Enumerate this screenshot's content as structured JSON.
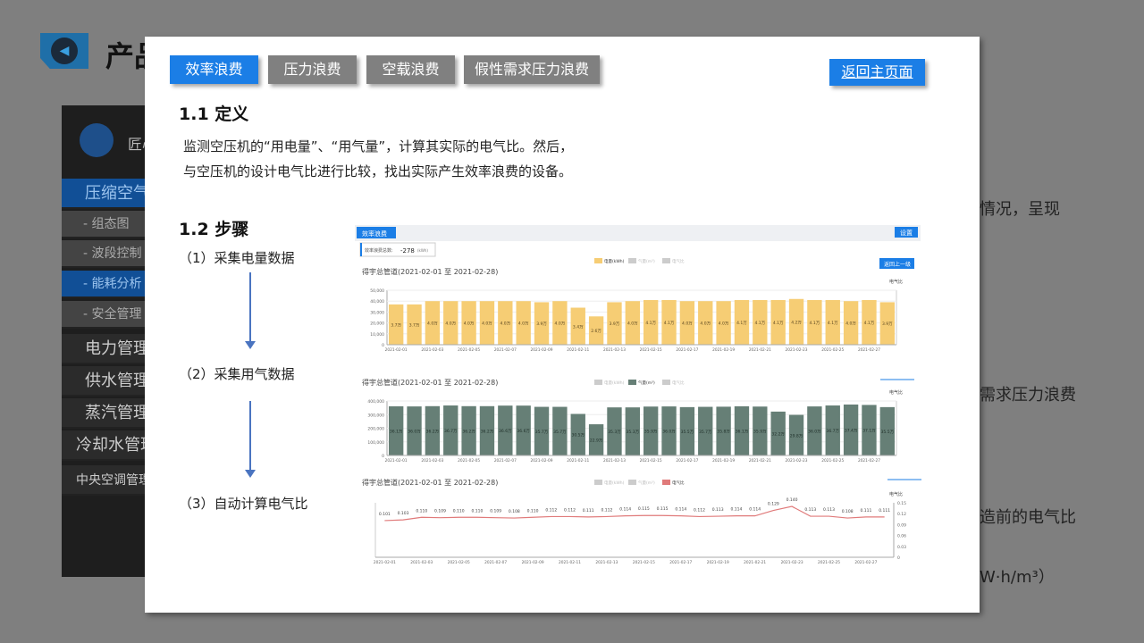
{
  "background": {
    "title": "产品",
    "sidebar": {
      "brand": "匠心",
      "items": [
        {
          "label": "压缩空气",
          "type": "act"
        },
        {
          "label": "- 组态图",
          "type": "sub"
        },
        {
          "label": "- 波段控制",
          "type": "sub"
        },
        {
          "label": "- 能耗分析",
          "type": "subact"
        },
        {
          "label": "- 安全管理",
          "type": "sub"
        },
        {
          "label": "电力管理",
          "type": "dark"
        },
        {
          "label": "供水管理",
          "type": "dark"
        },
        {
          "label": "蒸汽管理",
          "type": "dark"
        },
        {
          "label": "冷却水管理",
          "type": "dark"
        },
        {
          "label": "中央空调管理",
          "type": "darksm"
        }
      ]
    },
    "right_text": [
      "情况，呈现",
      "需求压力浪费",
      "造前的电气比",
      "W·h/m³）"
    ]
  },
  "tabs": [
    {
      "label": "效率浪费",
      "active": true
    },
    {
      "label": "压力浪费"
    },
    {
      "label": "空载浪费"
    },
    {
      "label": "假性需求压力浪费"
    }
  ],
  "home_button": "返回主页面",
  "section1": {
    "title": "1.1 定义",
    "lines": [
      "监测空压机的“用电量”、“用气量”，计算其实际的电气比。然后，",
      "与空压机的设计电气比进行比较，找出实际产生效率浪费的设备。"
    ]
  },
  "section2": {
    "title": "1.2 步骤",
    "steps": [
      "（1）采集电量数据",
      "（2）采集用气数据",
      "（3）自动计算电气比"
    ]
  },
  "panel": {
    "header": "效率浪费",
    "settings": "设置",
    "total_label": "效率浪费总数:",
    "total_value": "-278",
    "total_unit": "(kWh)",
    "back": "返回上一级",
    "accent": "#1b7ee6"
  },
  "chart_data": [
    {
      "type": "bar",
      "title": "得宇总管道(2021-02-01 至 2021-02-28)",
      "legend": [
        "电量(kWh)",
        "气量(m³)",
        "电气比"
      ],
      "active_series": 0,
      "color": "#f6cd74",
      "ylim": [
        0,
        50000
      ],
      "yticks": [
        0,
        10000,
        20000,
        30000,
        40000,
        50000
      ],
      "right_label": "电气比",
      "categories": [
        "2021-02-01",
        "2021-02-02",
        "2021-02-03",
        "2021-02-04",
        "2021-02-05",
        "2021-02-06",
        "2021-02-07",
        "2021-02-08",
        "2021-02-09",
        "2021-02-10",
        "2021-02-11",
        "2021-02-12",
        "2021-02-13",
        "2021-02-14",
        "2021-02-15",
        "2021-02-16",
        "2021-02-17",
        "2021-02-18",
        "2021-02-19",
        "2021-02-20",
        "2021-02-21",
        "2021-02-22",
        "2021-02-23",
        "2021-02-24",
        "2021-02-25",
        "2021-02-26",
        "2021-02-27",
        "2021-02-28"
      ],
      "values": [
        37000,
        37000,
        40000,
        40000,
        40000,
        40000,
        40000,
        40000,
        39000,
        40000,
        34000,
        26000,
        39000,
        40000,
        41000,
        41000,
        40000,
        40000,
        40000,
        41000,
        41000,
        41000,
        42000,
        41000,
        41000,
        40000,
        41000,
        39000
      ],
      "labels": [
        "3.7万",
        "3.7万",
        "4.0万",
        "4.0万",
        "4.0万",
        "4.0万",
        "4.0万",
        "4.0万",
        "3.9万",
        "4.0万",
        "3.4万",
        "2.6万",
        "3.9万",
        "4.0万",
        "4.1万",
        "4.1万",
        "4.0万",
        "4.0万",
        "4.0万",
        "4.1万",
        "4.1万",
        "4.1万",
        "4.2万",
        "4.1万",
        "4.1万",
        "4.0万",
        "4.1万",
        "3.9万"
      ]
    },
    {
      "type": "bar",
      "title": "得宇总管道(2021-02-01 至 2021-02-28)",
      "legend": [
        "电量(kWh)",
        "气量(m³)",
        "电气比"
      ],
      "active_series": 1,
      "color": "#667f76",
      "ylim": [
        0,
        400000
      ],
      "yticks": [
        0,
        100000,
        200000,
        300000,
        400000
      ],
      "right_label": "电气比",
      "values": [
        361000,
        360000,
        362000,
        367000,
        362000,
        362000,
        366000,
        366000,
        357000,
        357000,
        305000,
        229000,
        353000,
        353000,
        359000,
        360000,
        355000,
        357000,
        358000,
        361000,
        359000,
        322000,
        298000,
        360000,
        367000,
        374000,
        371000,
        355000
      ],
      "labels": [
        "36.1万",
        "36.0万",
        "36.2万",
        "36.7万",
        "36.2万",
        "36.2万",
        "36.6万",
        "36.6万",
        "35.7万",
        "35.7万",
        "30.5万",
        "22.9万",
        "35.3万",
        "35.3万",
        "35.9万",
        "36.0万",
        "35.5万",
        "35.7万",
        "35.8万",
        "36.1万",
        "35.9万",
        "32.2万",
        "29.8万",
        "36.0万",
        "36.7万",
        "37.4万",
        "37.1万",
        "35.5万"
      ]
    },
    {
      "type": "line",
      "title": "得宇总管道(2021-02-01 至 2021-02-28)",
      "legend": [
        "电量(kWh)",
        "气量(m³)",
        "电气比"
      ],
      "active_series": 2,
      "color": "#e07a7a",
      "ylim": [
        0,
        0.15
      ],
      "yticks": [
        0,
        0.03,
        0.06,
        0.09,
        0.12,
        0.15
      ],
      "ylabel": "电气比",
      "values": [
        0.101,
        0.103,
        0.11,
        0.109,
        0.11,
        0.11,
        0.109,
        0.108,
        0.11,
        0.112,
        0.112,
        0.111,
        0.112,
        0.114,
        0.115,
        0.115,
        0.114,
        0.112,
        0.113,
        0.114,
        0.114,
        0.129,
        0.14,
        0.113,
        0.113,
        0.108,
        0.111,
        0.111
      ]
    }
  ]
}
